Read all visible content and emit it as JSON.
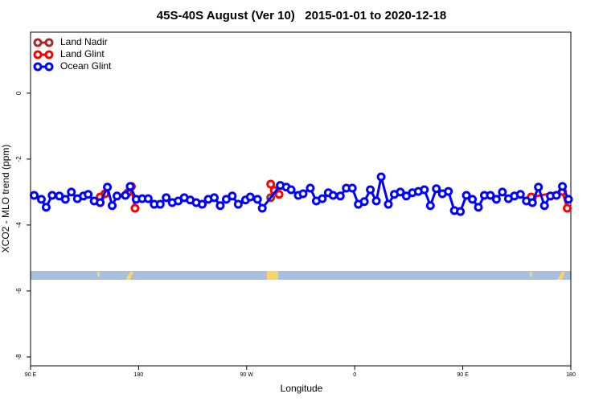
{
  "chart_data": {
    "type": "line",
    "title": "45S-40S August (Ver 10)   2015-01-01 to 2020-12-18",
    "xlabel": "Longitude",
    "ylabel": "XCO2 - MLO trend (ppm)",
    "xlim": [
      90,
      540
    ],
    "xticks": [
      {
        "value": 90,
        "label": "90 E"
      },
      {
        "value": 180,
        "label": "180"
      },
      {
        "value": 270,
        "label": "90 W"
      },
      {
        "value": 360,
        "label": "0"
      },
      {
        "value": 450,
        "label": "90 E"
      },
      {
        "value": 540,
        "label": "180"
      }
    ],
    "ylim": [
      -8.27,
      1.85
    ],
    "yticks": [
      0,
      -2,
      -4,
      -6,
      -8
    ],
    "legend": "top-left",
    "series": [
      {
        "name": "Land Nadir",
        "color": "#a52a2a",
        "x": [
          148,
          null,
          290,
          null,
          508
        ],
        "values": [
          -3.17,
          null,
          -3.17,
          null,
          -3.17
        ]
      },
      {
        "name": "Land Glint",
        "color": "#ff0000",
        "x": [
          148,
          152,
          null,
          171,
          174,
          177,
          null,
          290,
          293,
          297,
          null,
          507,
          533,
          537
        ],
        "values": [
          -3.15,
          -3.05,
          null,
          -3.02,
          -2.83,
          -3.49,
          null,
          -2.76,
          -2.95,
          -3.07,
          null,
          -3.15,
          -2.98,
          -3.49
        ]
      },
      {
        "name": "Ocean Glint",
        "color": "#0000ff",
        "x": [
          93,
          99,
          103,
          108,
          114,
          119,
          124,
          129,
          134,
          138,
          143,
          148,
          154,
          158,
          162,
          169,
          173,
          178,
          183,
          188,
          193,
          198,
          203,
          208,
          213,
          218,
          223,
          228,
          233,
          238,
          243,
          248,
          253,
          258,
          263,
          269,
          273,
          279,
          283,
          298,
          303,
          307,
          313,
          317,
          323,
          328,
          333,
          338,
          342,
          348,
          353,
          358,
          363,
          368,
          373,
          378,
          382,
          388,
          393,
          398,
          403,
          408,
          413,
          418,
          423,
          428,
          433,
          438,
          443,
          448,
          453,
          458,
          463,
          468,
          473,
          478,
          483,
          488,
          493,
          498,
          503,
          508,
          513,
          518,
          523,
          528,
          533,
          538
        ],
        "values": [
          -3.1,
          -3.22,
          -3.46,
          -3.1,
          -3.12,
          -3.22,
          -3.0,
          -3.2,
          -3.12,
          -3.07,
          -3.27,
          -3.32,
          -2.85,
          -3.41,
          -3.12,
          -3.1,
          -2.83,
          -3.22,
          -3.2,
          -3.2,
          -3.37,
          -3.37,
          -3.17,
          -3.32,
          -3.27,
          -3.17,
          -3.24,
          -3.32,
          -3.37,
          -3.22,
          -3.17,
          -3.41,
          -3.22,
          -3.12,
          -3.37,
          -3.24,
          -3.15,
          -3.22,
          -3.49,
          -2.8,
          -2.85,
          -2.93,
          -3.1,
          -3.05,
          -2.88,
          -3.27,
          -3.2,
          -3.02,
          -3.1,
          -3.12,
          -2.88,
          -2.88,
          -3.37,
          -3.29,
          -2.93,
          -3.27,
          -2.54,
          -3.37,
          -3.07,
          -3.0,
          -3.12,
          -3.02,
          -2.98,
          -2.93,
          -3.41,
          -2.9,
          -3.05,
          -2.98,
          -3.56,
          -3.59,
          -3.1,
          -3.22,
          -3.46,
          -3.1,
          -3.1,
          -3.22,
          -3.0,
          -3.2,
          -3.12,
          -3.07,
          -3.27,
          -3.32,
          -2.85,
          -3.41,
          -3.12,
          -3.1,
          -2.83,
          -3.22
        ]
      }
    ]
  }
}
